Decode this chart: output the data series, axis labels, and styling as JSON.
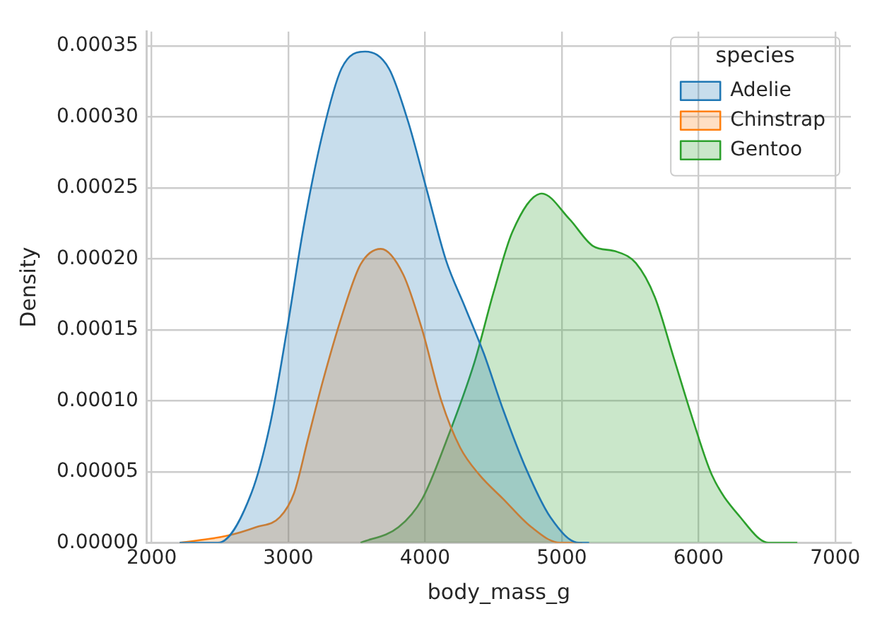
{
  "chart_data": {
    "type": "area",
    "xlabel": "body_mass_g",
    "ylabel": "Density",
    "legend_title": "species",
    "legend": "top right",
    "grid": true,
    "xlim": [
      1965,
      7115
    ],
    "xticks": [
      2000,
      3000,
      4000,
      5000,
      6000,
      7000
    ],
    "ylim": [
      0,
      0.00036
    ],
    "yticks": [
      {
        "value": 0,
        "label": "0.00000"
      },
      {
        "value": 5e-05,
        "label": "0.00005"
      },
      {
        "value": 0.0001,
        "label": "0.00010"
      },
      {
        "value": 0.00015,
        "label": "0.00015"
      },
      {
        "value": 0.0002,
        "label": "0.00020"
      },
      {
        "value": 0.00025,
        "label": "0.00025"
      },
      {
        "value": 0.0003,
        "label": "0.00030"
      },
      {
        "value": 0.00035,
        "label": "0.00035"
      }
    ],
    "series": [
      {
        "name": "Adelie",
        "color": "#1f77b4",
        "x": [
          2205,
          2486,
          2730,
          2868,
          2990,
          3111,
          3250,
          3389,
          3562,
          3736,
          3875,
          4014,
          4153,
          4292,
          4431,
          4570,
          4744,
          4917,
          5125,
          5200
        ],
        "values": [
          0,
          0,
          3.5e-05,
          8.4e-05,
          0.00015,
          0.000222,
          0.000288,
          0.000334,
          0.000346,
          0.000334,
          0.000297,
          0.000248,
          0.000199,
          0.000166,
          0.000133,
          9.4e-05,
          5.1e-05,
          1.8e-05,
          0,
          0
        ]
      },
      {
        "name": "Chinstrap",
        "color": "#ff7f0e",
        "x": [
          2205,
          2556,
          2765,
          2938,
          3042,
          3146,
          3250,
          3389,
          3528,
          3677,
          3840,
          3979,
          4119,
          4257,
          4396,
          4570,
          4778,
          4986,
          5150
        ],
        "values": [
          0,
          5e-06,
          1.1e-05,
          1.8e-05,
          3.5e-05,
          7.4e-05,
          0.000113,
          0.000159,
          0.000196,
          0.000207,
          0.000189,
          0.00015,
          0.0001,
          6.7e-05,
          4.8e-05,
          3.1e-05,
          1.1e-05,
          0,
          0
        ]
      },
      {
        "name": "Gentoo",
        "color": "#2ca02c",
        "x": [
          3528,
          3806,
          3980,
          4153,
          4361,
          4500,
          4639,
          4854,
          5056,
          5229,
          5403,
          5542,
          5681,
          5820,
          5958,
          6097,
          6306,
          6514,
          6723
        ],
        "values": [
          0,
          1.1e-05,
          3.1e-05,
          7.1e-05,
          0.000127,
          0.000176,
          0.000219,
          0.000246,
          0.000228,
          0.000209,
          0.000205,
          0.000197,
          0.000173,
          0.00013,
          8.7e-05,
          4.8e-05,
          1.8e-05,
          0,
          0
        ]
      }
    ]
  }
}
